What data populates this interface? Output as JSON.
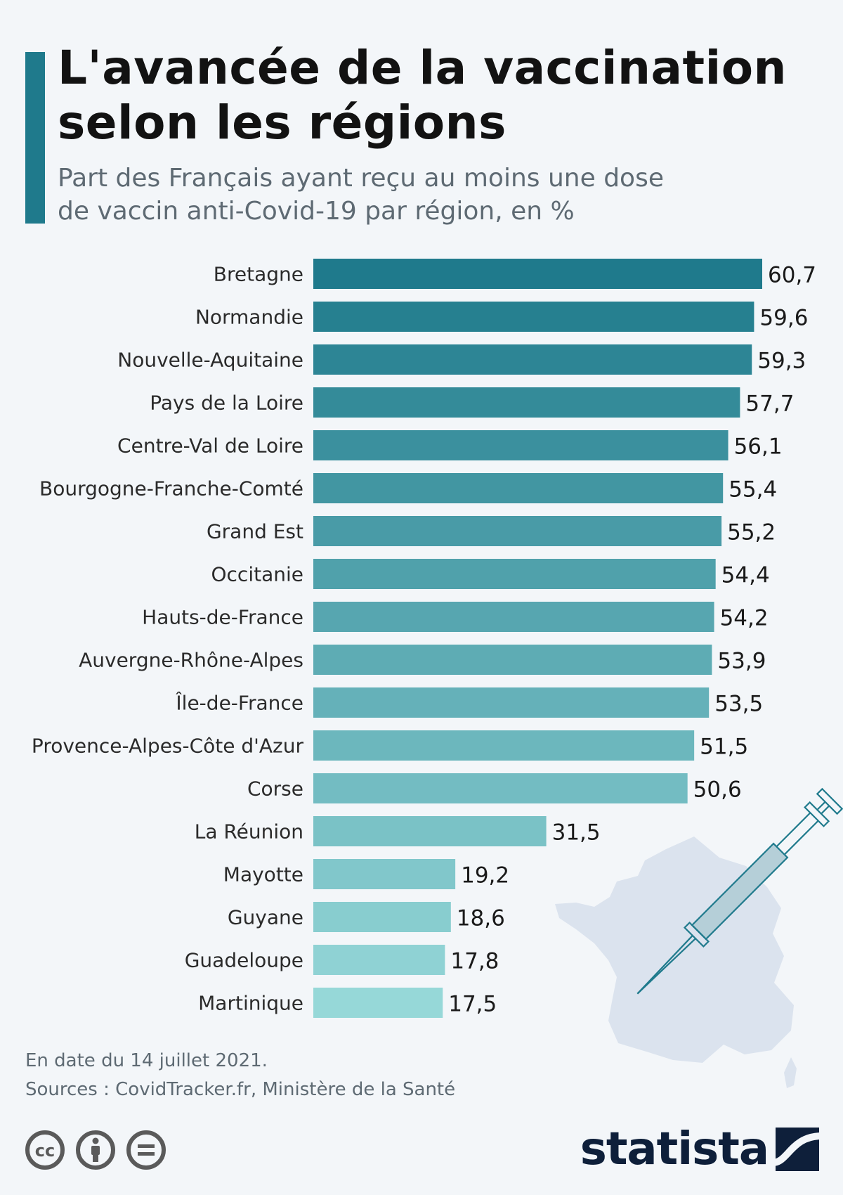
{
  "header": {
    "title_line1": "L'avancée de la vaccination",
    "title_line2": "selon les régions",
    "subtitle_line1": "Part des Français ayant reçu au moins une dose",
    "subtitle_line2": "de vaccin anti-Covid-19 par région, en %"
  },
  "chart_data": {
    "type": "bar",
    "orientation": "horizontal",
    "title": "L'avancée de la vaccination selon les régions",
    "subtitle": "Part des Français ayant reçu au moins une dose de vaccin anti-Covid-19 par région, en %",
    "xlabel": "",
    "ylabel": "",
    "xlim": [
      0,
      60.7
    ],
    "grid": false,
    "legend": "none",
    "color_start": "#1f7a8c",
    "color_end": "#96d8d8",
    "categories": [
      "Bretagne",
      "Normandie",
      "Nouvelle-Aquitaine",
      "Pays de la Loire",
      "Centre-Val de Loire",
      "Bourgogne-Franche-Comté",
      "Grand Est",
      "Occitanie",
      "Hauts-de-France",
      "Auvergne-Rhône-Alpes",
      "Île-de-France",
      "Provence-Alpes-Côte d'Azur",
      "Corse",
      "La Réunion",
      "Mayotte",
      "Guyane",
      "Guadeloupe",
      "Martinique"
    ],
    "values": [
      60.7,
      59.6,
      59.3,
      57.7,
      56.1,
      55.4,
      55.2,
      54.4,
      54.2,
      53.9,
      53.5,
      51.5,
      50.6,
      31.5,
      19.2,
      18.6,
      17.8,
      17.5
    ],
    "value_labels": [
      "60,7",
      "59,6",
      "59,3",
      "57,7",
      "56,1",
      "55,4",
      "55,2",
      "54,4",
      "54,2",
      "53,9",
      "53,5",
      "51,5",
      "50,6",
      "31,5",
      "19,2",
      "18,6",
      "17,8",
      "17,5"
    ]
  },
  "footer": {
    "date": "En date du 14 juillet 2021.",
    "sources": "Sources : CovidTracker.fr, Ministère de la Santé"
  },
  "brand": {
    "name": "statista",
    "color": "#0e1f3a"
  },
  "icons": [
    "cc-icon",
    "attribution-icon",
    "no-derivatives-icon",
    "syringe-icon",
    "france-map-icon",
    "statista-logo-icon"
  ]
}
